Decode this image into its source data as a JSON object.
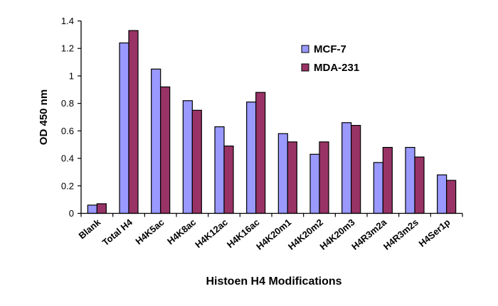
{
  "chart_data": {
    "type": "bar",
    "title": "",
    "xlabel": "Histoen H4 Modifications",
    "ylabel": "OD 450 nm",
    "ylim": [
      0,
      1.4
    ],
    "yticks": [
      "0",
      "0.2",
      "0.4",
      "0.6",
      "0.8",
      "1",
      "1.2",
      "1.4"
    ],
    "grid": false,
    "legend_position": "top-right",
    "categories": [
      "Blank",
      "Total H4",
      "H4K5ac",
      "H4K8ac",
      "H4K12ac",
      "H4K16ac",
      "H4K20m1",
      "H4K20m2",
      "H4K20m3",
      "H4R3m2a",
      "H4R3m2s",
      "H4Ser1p"
    ],
    "series": [
      {
        "name": "MCF-7",
        "color": "#9999FF",
        "values": [
          0.06,
          1.24,
          1.05,
          0.82,
          0.63,
          0.81,
          0.58,
          0.43,
          0.66,
          0.37,
          0.48,
          0.28
        ]
      },
      {
        "name": "MDA-231",
        "color": "#993366",
        "values": [
          0.07,
          1.33,
          0.92,
          0.75,
          0.49,
          0.88,
          0.52,
          0.52,
          0.64,
          0.48,
          0.41,
          0.24
        ]
      }
    ]
  }
}
